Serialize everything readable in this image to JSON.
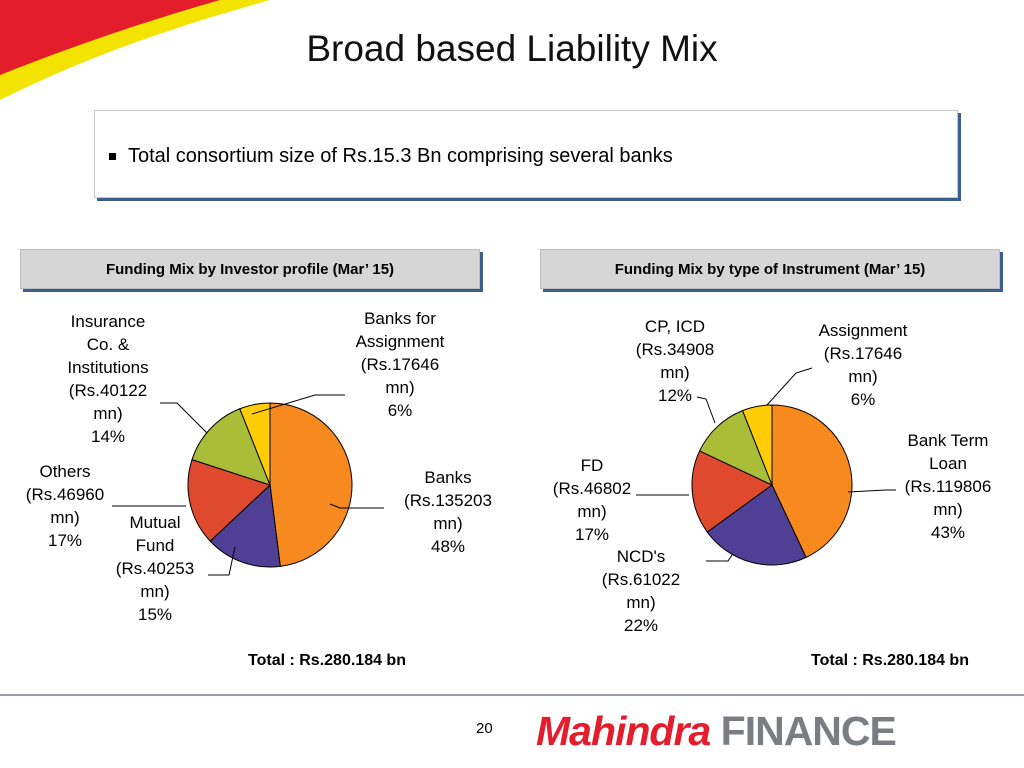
{
  "slide": {
    "title": "Broad based Liability Mix",
    "bullet": "Total consortium size of Rs.15.3 Bn comprising several banks",
    "page_number": "20",
    "brand": {
      "mahindra": "Mahindra",
      "finance": "FINANCE"
    }
  },
  "colors": {
    "orange": "#F68A1E",
    "purple": "#4F4096",
    "red": "#DF4A2F",
    "green": "#AABD38",
    "yellow": "#FFCC05",
    "header_bg": "#D6D6D6",
    "brand_red": "#E31D2B",
    "brand_gray": "#7A7D82"
  },
  "chart_data": [
    {
      "type": "pie",
      "title": "Funding Mix by Investor profile (Mar’ 15)",
      "total": "Total : Rs.280.184 bn",
      "slices": [
        {
          "name": "Banks",
          "value": 48,
          "amount_mn": 135203,
          "label_lines": [
            "Banks",
            "(Rs.135203",
            "mn)",
            "48%"
          ]
        },
        {
          "name": "Mutual Fund",
          "value": 15,
          "amount_mn": 40253,
          "label_lines": [
            "Mutual",
            "Fund",
            "(Rs.40253",
            "mn)",
            "15%"
          ]
        },
        {
          "name": "Others",
          "value": 17,
          "amount_mn": 46960,
          "label_lines": [
            "Others",
            "(Rs.46960",
            "mn)",
            "17%"
          ]
        },
        {
          "name": "Insurance Co. & Institutions",
          "value": 14,
          "amount_mn": 40122,
          "label_lines": [
            "Insurance",
            "Co. &",
            "Institutions",
            "(Rs.40122",
            "mn)",
            "14%"
          ]
        },
        {
          "name": "Banks for Assignment",
          "value": 6,
          "amount_mn": 17646,
          "label_lines": [
            "Banks for",
            "Assignment",
            "(Rs.17646",
            "mn)",
            "6%"
          ]
        }
      ]
    },
    {
      "type": "pie",
      "title": "Funding Mix by type of Instrument (Mar’ 15)",
      "total": "Total : Rs.280.184 bn",
      "slices": [
        {
          "name": "Bank Term Loan",
          "value": 43,
          "amount_mn": 119806,
          "label_lines": [
            "Bank Term",
            "Loan",
            "(Rs.119806",
            "mn)",
            "43%"
          ]
        },
        {
          "name": "NCD's",
          "value": 22,
          "amount_mn": 61022,
          "label_lines": [
            "NCD's",
            "(Rs.61022",
            "mn)",
            "22%"
          ]
        },
        {
          "name": "FD",
          "value": 17,
          "amount_mn": 46802,
          "label_lines": [
            "FD",
            "(Rs.46802",
            "mn)",
            "17%"
          ]
        },
        {
          "name": "CP, ICD",
          "value": 12,
          "amount_mn": 34908,
          "label_lines": [
            "CP, ICD",
            "(Rs.34908",
            "mn)",
            "12%"
          ]
        },
        {
          "name": "Assignment",
          "value": 6,
          "amount_mn": 17646,
          "label_lines": [
            "Assignment",
            "(Rs.17646",
            "mn)",
            "6%"
          ]
        }
      ]
    }
  ]
}
